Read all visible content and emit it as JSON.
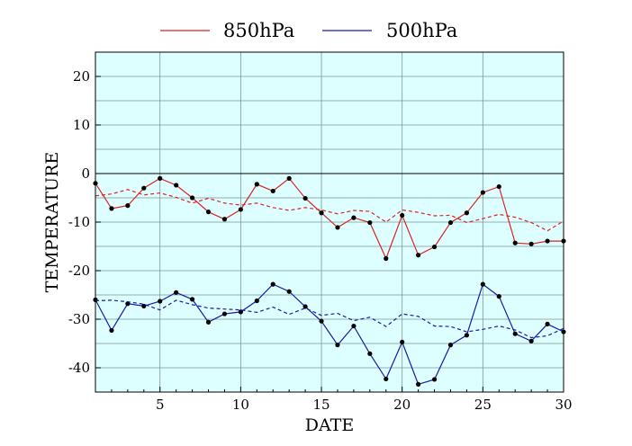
{
  "chart_data": {
    "type": "line",
    "xlabel": "DATE",
    "ylabel": "TEMPERATURE",
    "xlim": [
      1,
      30
    ],
    "ylim": [
      -45,
      25
    ],
    "x_ticks": [
      5,
      10,
      15,
      20,
      25,
      30
    ],
    "y_ticks": [
      20,
      10,
      0,
      -10,
      -20,
      -30,
      -40
    ],
    "grid": true,
    "zero_line": true,
    "legend_position": "top",
    "plot_background": "#deffff",
    "x": [
      1,
      2,
      3,
      4,
      5,
      6,
      7,
      8,
      9,
      10,
      11,
      12,
      13,
      14,
      15,
      16,
      17,
      18,
      19,
      20,
      21,
      22,
      23,
      24,
      25,
      26,
      27,
      28,
      29,
      30
    ],
    "series": [
      {
        "name": "850hPa",
        "color": "#dd2222",
        "style": "solid",
        "markers": true,
        "values": [
          -2.0,
          -7.2,
          -6.6,
          -3.0,
          -1.0,
          -2.4,
          -5.0,
          -7.9,
          -9.4,
          -7.4,
          -2.2,
          -3.6,
          -1.0,
          -5.1,
          -8.1,
          -11.1,
          -9.1,
          -10.1,
          -17.5,
          -8.6,
          -16.8,
          -15.1,
          -10.1,
          -8.1,
          -3.9,
          -2.7,
          -14.3,
          -14.5,
          -13.9,
          -13.9
        ]
      },
      {
        "name": "",
        "color": "#dd2222",
        "style": "dashed",
        "markers": false,
        "values": [
          -4.6,
          -4.2,
          -3.3,
          -4.4,
          -4.0,
          -4.9,
          -6.1,
          -5.1,
          -6.1,
          -6.5,
          -6.1,
          -7.0,
          -7.6,
          -7.0,
          -7.5,
          -8.3,
          -7.6,
          -7.8,
          -10.0,
          -7.5,
          -8.0,
          -8.7,
          -8.6,
          -10.1,
          -9.3,
          -8.4,
          -9.0,
          -10.1,
          -11.8,
          -9.8
        ]
      },
      {
        "name": "500hPa",
        "color": "#1a1aaa",
        "style": "solid",
        "markers": true,
        "values": [
          -26.0,
          -32.3,
          -26.8,
          -27.3,
          -26.3,
          -24.5,
          -25.9,
          -30.6,
          -28.9,
          -28.5,
          -26.2,
          -22.8,
          -24.3,
          -27.4,
          -30.4,
          -35.3,
          -31.4,
          -37.1,
          -42.3,
          -34.7,
          -43.4,
          -42.4,
          -35.3,
          -33.3,
          -22.8,
          -25.3,
          -33.0,
          -34.5,
          -31.0,
          -32.6
        ]
      },
      {
        "name": "",
        "color": "#1a1aaa",
        "style": "dashed",
        "markers": false,
        "values": [
          -26.2,
          -26.1,
          -26.4,
          -26.9,
          -28.1,
          -26.1,
          -27.0,
          -27.7,
          -27.9,
          -28.1,
          -28.6,
          -27.5,
          -29.0,
          -27.7,
          -29.2,
          -28.8,
          -30.3,
          -29.6,
          -31.5,
          -28.9,
          -29.4,
          -31.4,
          -31.5,
          -32.6,
          -32.1,
          -31.4,
          -32.2,
          -33.8,
          -33.4,
          -31.9
        ]
      }
    ]
  }
}
